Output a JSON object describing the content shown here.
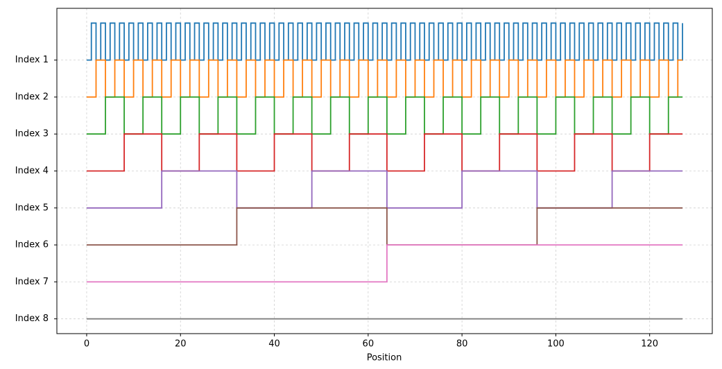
{
  "chart_data": {
    "type": "step",
    "xlabel": "Position",
    "x": [
      0,
      1,
      2,
      3,
      4,
      5,
      6,
      7,
      8,
      9,
      10,
      11,
      12,
      13,
      14,
      15,
      16,
      17,
      18,
      19,
      20,
      21,
      22,
      23,
      24,
      25,
      26,
      27,
      28,
      29,
      30,
      31,
      32,
      33,
      34,
      35,
      36,
      37,
      38,
      39,
      40,
      41,
      42,
      43,
      44,
      45,
      46,
      47,
      48,
      49,
      50,
      51,
      52,
      53,
      54,
      55,
      56,
      57,
      58,
      59,
      60,
      61,
      62,
      63,
      64,
      65,
      66,
      67,
      68,
      69,
      70,
      71,
      72,
      73,
      74,
      75,
      76,
      77,
      78,
      79,
      80,
      81,
      82,
      83,
      84,
      85,
      86,
      87,
      88,
      89,
      90,
      91,
      92,
      93,
      94,
      95,
      96,
      97,
      98,
      99,
      100,
      101,
      102,
      103,
      104,
      105,
      106,
      107,
      108,
      109,
      110,
      111,
      112,
      113,
      114,
      115,
      116,
      117,
      118,
      119,
      120,
      121,
      122,
      123,
      124,
      125,
      126,
      127
    ],
    "series": [
      {
        "color": "#1f77b4",
        "values": [
          7,
          8,
          7,
          8,
          7,
          8,
          7,
          8,
          7,
          8,
          7,
          8,
          7,
          8,
          7,
          8,
          7,
          8,
          7,
          8,
          7,
          8,
          7,
          8,
          7,
          8,
          7,
          8,
          7,
          8,
          7,
          8,
          7,
          8,
          7,
          8,
          7,
          8,
          7,
          8,
          7,
          8,
          7,
          8,
          7,
          8,
          7,
          8,
          7,
          8,
          7,
          8,
          7,
          8,
          7,
          8,
          7,
          8,
          7,
          8,
          7,
          8,
          7,
          8,
          7,
          8,
          7,
          8,
          7,
          8,
          7,
          8,
          7,
          8,
          7,
          8,
          7,
          8,
          7,
          8,
          7,
          8,
          7,
          8,
          7,
          8,
          7,
          8,
          7,
          8,
          7,
          8,
          7,
          8,
          7,
          8,
          7,
          8,
          7,
          8,
          7,
          8,
          7,
          8,
          7,
          8,
          7,
          8,
          7,
          8,
          7,
          8,
          7,
          8,
          7,
          8,
          7,
          8,
          7,
          8,
          7,
          8,
          7,
          8,
          7,
          8,
          7,
          8
        ]
      },
      {
        "color": "#ff7f0e",
        "values": [
          6,
          6,
          7,
          7,
          6,
          6,
          7,
          7,
          6,
          6,
          7,
          7,
          6,
          6,
          7,
          7,
          6,
          6,
          7,
          7,
          6,
          6,
          7,
          7,
          6,
          6,
          7,
          7,
          6,
          6,
          7,
          7,
          6,
          6,
          7,
          7,
          6,
          6,
          7,
          7,
          6,
          6,
          7,
          7,
          6,
          6,
          7,
          7,
          6,
          6,
          7,
          7,
          6,
          6,
          7,
          7,
          6,
          6,
          7,
          7,
          6,
          6,
          7,
          7,
          6,
          6,
          7,
          7,
          6,
          6,
          7,
          7,
          6,
          6,
          7,
          7,
          6,
          6,
          7,
          7,
          6,
          6,
          7,
          7,
          6,
          6,
          7,
          7,
          6,
          6,
          7,
          7,
          6,
          6,
          7,
          7,
          6,
          6,
          7,
          7,
          6,
          6,
          7,
          7,
          6,
          6,
          7,
          7,
          6,
          6,
          7,
          7,
          6,
          6,
          7,
          7,
          6,
          6,
          7,
          7,
          6,
          6,
          7,
          7,
          6,
          6,
          7,
          7
        ]
      },
      {
        "color": "#2ca02c",
        "values": [
          5,
          5,
          5,
          5,
          6,
          6,
          6,
          6,
          5,
          5,
          5,
          5,
          6,
          6,
          6,
          6,
          5,
          5,
          5,
          5,
          6,
          6,
          6,
          6,
          5,
          5,
          5,
          5,
          6,
          6,
          6,
          6,
          5,
          5,
          5,
          5,
          6,
          6,
          6,
          6,
          5,
          5,
          5,
          5,
          6,
          6,
          6,
          6,
          5,
          5,
          5,
          5,
          6,
          6,
          6,
          6,
          5,
          5,
          5,
          5,
          6,
          6,
          6,
          6,
          5,
          5,
          5,
          5,
          6,
          6,
          6,
          6,
          5,
          5,
          5,
          5,
          6,
          6,
          6,
          6,
          5,
          5,
          5,
          5,
          6,
          6,
          6,
          6,
          5,
          5,
          5,
          5,
          6,
          6,
          6,
          6,
          5,
          5,
          5,
          5,
          6,
          6,
          6,
          6,
          5,
          5,
          5,
          5,
          6,
          6,
          6,
          6,
          5,
          5,
          5,
          5,
          6,
          6,
          6,
          6,
          5,
          5,
          5,
          5,
          6,
          6,
          6,
          6
        ]
      },
      {
        "color": "#d62728",
        "values": [
          4,
          4,
          4,
          4,
          4,
          4,
          4,
          4,
          5,
          5,
          5,
          5,
          5,
          5,
          5,
          5,
          4,
          4,
          4,
          4,
          4,
          4,
          4,
          4,
          5,
          5,
          5,
          5,
          5,
          5,
          5,
          5,
          4,
          4,
          4,
          4,
          4,
          4,
          4,
          4,
          5,
          5,
          5,
          5,
          5,
          5,
          5,
          5,
          4,
          4,
          4,
          4,
          4,
          4,
          4,
          4,
          5,
          5,
          5,
          5,
          5,
          5,
          5,
          5,
          4,
          4,
          4,
          4,
          4,
          4,
          4,
          4,
          5,
          5,
          5,
          5,
          5,
          5,
          5,
          5,
          4,
          4,
          4,
          4,
          4,
          4,
          4,
          4,
          5,
          5,
          5,
          5,
          5,
          5,
          5,
          5,
          4,
          4,
          4,
          4,
          4,
          4,
          4,
          4,
          5,
          5,
          5,
          5,
          5,
          5,
          5,
          5,
          4,
          4,
          4,
          4,
          4,
          4,
          4,
          4,
          5,
          5,
          5,
          5,
          5,
          5,
          5,
          5
        ]
      },
      {
        "color": "#9467bd",
        "values": [
          3,
          3,
          3,
          3,
          3,
          3,
          3,
          3,
          3,
          3,
          3,
          3,
          3,
          3,
          3,
          3,
          4,
          4,
          4,
          4,
          4,
          4,
          4,
          4,
          4,
          4,
          4,
          4,
          4,
          4,
          4,
          4,
          3,
          3,
          3,
          3,
          3,
          3,
          3,
          3,
          3,
          3,
          3,
          3,
          3,
          3,
          3,
          3,
          4,
          4,
          4,
          4,
          4,
          4,
          4,
          4,
          4,
          4,
          4,
          4,
          4,
          4,
          4,
          4,
          3,
          3,
          3,
          3,
          3,
          3,
          3,
          3,
          3,
          3,
          3,
          3,
          3,
          3,
          3,
          3,
          4,
          4,
          4,
          4,
          4,
          4,
          4,
          4,
          4,
          4,
          4,
          4,
          4,
          4,
          4,
          4,
          3,
          3,
          3,
          3,
          3,
          3,
          3,
          3,
          3,
          3,
          3,
          3,
          3,
          3,
          3,
          3,
          4,
          4,
          4,
          4,
          4,
          4,
          4,
          4,
          4,
          4,
          4,
          4,
          4,
          4,
          4,
          4
        ]
      },
      {
        "color": "#8c564b",
        "values": [
          2,
          2,
          2,
          2,
          2,
          2,
          2,
          2,
          2,
          2,
          2,
          2,
          2,
          2,
          2,
          2,
          2,
          2,
          2,
          2,
          2,
          2,
          2,
          2,
          2,
          2,
          2,
          2,
          2,
          2,
          2,
          2,
          3,
          3,
          3,
          3,
          3,
          3,
          3,
          3,
          3,
          3,
          3,
          3,
          3,
          3,
          3,
          3,
          3,
          3,
          3,
          3,
          3,
          3,
          3,
          3,
          3,
          3,
          3,
          3,
          3,
          3,
          3,
          3,
          2,
          2,
          2,
          2,
          2,
          2,
          2,
          2,
          2,
          2,
          2,
          2,
          2,
          2,
          2,
          2,
          2,
          2,
          2,
          2,
          2,
          2,
          2,
          2,
          2,
          2,
          2,
          2,
          2,
          2,
          2,
          2,
          3,
          3,
          3,
          3,
          3,
          3,
          3,
          3,
          3,
          3,
          3,
          3,
          3,
          3,
          3,
          3,
          3,
          3,
          3,
          3,
          3,
          3,
          3,
          3,
          3,
          3,
          3,
          3,
          3,
          3,
          3,
          3
        ]
      },
      {
        "color": "#e377c2",
        "values": [
          1,
          1,
          1,
          1,
          1,
          1,
          1,
          1,
          1,
          1,
          1,
          1,
          1,
          1,
          1,
          1,
          1,
          1,
          1,
          1,
          1,
          1,
          1,
          1,
          1,
          1,
          1,
          1,
          1,
          1,
          1,
          1,
          1,
          1,
          1,
          1,
          1,
          1,
          1,
          1,
          1,
          1,
          1,
          1,
          1,
          1,
          1,
          1,
          1,
          1,
          1,
          1,
          1,
          1,
          1,
          1,
          1,
          1,
          1,
          1,
          1,
          1,
          1,
          1,
          2,
          2,
          2,
          2,
          2,
          2,
          2,
          2,
          2,
          2,
          2,
          2,
          2,
          2,
          2,
          2,
          2,
          2,
          2,
          2,
          2,
          2,
          2,
          2,
          2,
          2,
          2,
          2,
          2,
          2,
          2,
          2,
          2,
          2,
          2,
          2,
          2,
          2,
          2,
          2,
          2,
          2,
          2,
          2,
          2,
          2,
          2,
          2,
          2,
          2,
          2,
          2,
          2,
          2,
          2,
          2,
          2,
          2,
          2,
          2,
          2,
          2,
          2,
          2
        ]
      },
      {
        "color": "#7f7f7f",
        "values": [
          0,
          0,
          0,
          0,
          0,
          0,
          0,
          0,
          0,
          0,
          0,
          0,
          0,
          0,
          0,
          0,
          0,
          0,
          0,
          0,
          0,
          0,
          0,
          0,
          0,
          0,
          0,
          0,
          0,
          0,
          0,
          0,
          0,
          0,
          0,
          0,
          0,
          0,
          0,
          0,
          0,
          0,
          0,
          0,
          0,
          0,
          0,
          0,
          0,
          0,
          0,
          0,
          0,
          0,
          0,
          0,
          0,
          0,
          0,
          0,
          0,
          0,
          0,
          0,
          0,
          0,
          0,
          0,
          0,
          0,
          0,
          0,
          0,
          0,
          0,
          0,
          0,
          0,
          0,
          0,
          0,
          0,
          0,
          0,
          0,
          0,
          0,
          0,
          0,
          0,
          0,
          0,
          0,
          0,
          0,
          0,
          0,
          0,
          0,
          0,
          0,
          0,
          0,
          0,
          0,
          0,
          0,
          0,
          0,
          0,
          0,
          0,
          0,
          0,
          0,
          0,
          0,
          0,
          0,
          0,
          0,
          0,
          0,
          0,
          0,
          0,
          0,
          0
        ]
      }
    ],
    "xlim": [
      -6.35,
      133.35
    ],
    "xticks": [
      0,
      20,
      40,
      60,
      80,
      100,
      120
    ],
    "ylim": [
      -0.4,
      8.4
    ],
    "yticks": [
      {
        "value": 0,
        "label": "Index 8"
      },
      {
        "value": 1,
        "label": "Index 7"
      },
      {
        "value": 2,
        "label": "Index 6"
      },
      {
        "value": 3,
        "label": "Index 5"
      },
      {
        "value": 4,
        "label": "Index 4"
      },
      {
        "value": 5,
        "label": "Index 3"
      },
      {
        "value": 6,
        "label": "Index 2"
      },
      {
        "value": 7,
        "label": "Index 1"
      }
    ],
    "grid": true
  }
}
